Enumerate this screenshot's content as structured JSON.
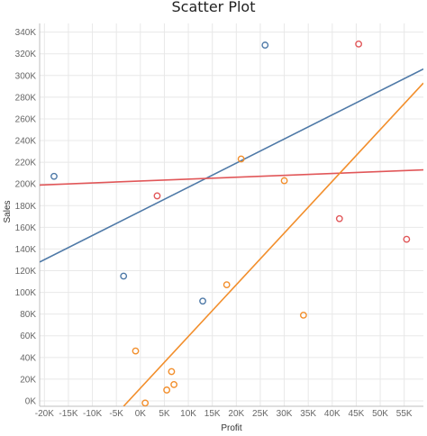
{
  "chart_data": {
    "type": "scatter",
    "title": "Scatter Plot",
    "xlabel": "Profit",
    "ylabel": "Sales",
    "xlim": [
      -21000,
      59000
    ],
    "ylim": [
      -5000,
      348000
    ],
    "x_ticks": [
      "-20K",
      "-15K",
      "-10K",
      "-5K",
      "0K",
      "5K",
      "10K",
      "15K",
      "20K",
      "25K",
      "30K",
      "35K",
      "40K",
      "45K",
      "50K",
      "55K"
    ],
    "x_tick_values": [
      -20000,
      -15000,
      -10000,
      -5000,
      0,
      5000,
      10000,
      15000,
      20000,
      25000,
      30000,
      35000,
      40000,
      45000,
      50000,
      55000
    ],
    "y_ticks": [
      "0K",
      "20K",
      "40K",
      "60K",
      "80K",
      "100K",
      "120K",
      "140K",
      "160K",
      "180K",
      "200K",
      "220K",
      "240K",
      "260K",
      "280K",
      "300K",
      "320K",
      "340K"
    ],
    "y_tick_values": [
      0,
      20000,
      40000,
      60000,
      80000,
      100000,
      120000,
      140000,
      160000,
      180000,
      200000,
      220000,
      240000,
      260000,
      280000,
      300000,
      320000,
      340000
    ],
    "grid": true,
    "series": [
      {
        "color": "#4e79a7",
        "points": [
          [
            -18000,
            207000
          ],
          [
            -3500,
            115000
          ],
          [
            13000,
            92000
          ],
          [
            26000,
            328000
          ]
        ],
        "trend": [
          [
            -21000,
            128000
          ],
          [
            59000,
            306000
          ]
        ]
      },
      {
        "color": "#e15759",
        "points": [
          [
            3500,
            189000
          ],
          [
            41500,
            168000
          ],
          [
            45500,
            329000
          ],
          [
            55500,
            149000
          ]
        ],
        "trend": [
          [
            -21000,
            199000
          ],
          [
            59000,
            213000
          ]
        ]
      },
      {
        "color": "#f28e2b",
        "points": [
          [
            -1000,
            46000
          ],
          [
            1000,
            -2000
          ],
          [
            5500,
            10000
          ],
          [
            6500,
            27000
          ],
          [
            7000,
            15000
          ],
          [
            18000,
            107000
          ],
          [
            21000,
            223000
          ],
          [
            30000,
            203000
          ],
          [
            34000,
            79000
          ]
        ],
        "trend": [
          [
            -3500,
            -5000
          ],
          [
            59000,
            293000
          ]
        ]
      }
    ]
  }
}
